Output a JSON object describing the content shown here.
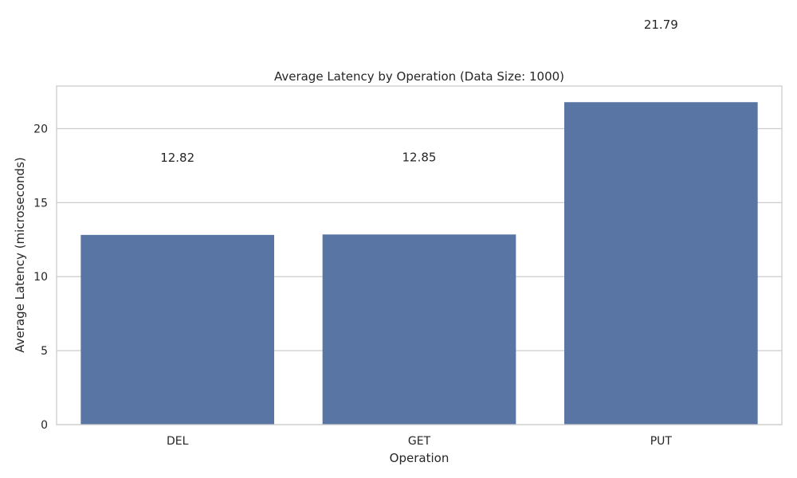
{
  "chart_data": {
    "type": "bar",
    "title": "Average Latency by Operation (Data Size: 1000)",
    "xlabel": "Operation",
    "ylabel": "Average Latency (microseconds)",
    "categories": [
      "DEL",
      "GET",
      "PUT"
    ],
    "values": [
      12.82,
      12.85,
      21.79
    ],
    "data_labels": [
      "12.82",
      "12.85",
      "21.79"
    ],
    "ylim": [
      0,
      22.88
    ],
    "yticks": [
      0,
      5,
      10,
      15,
      20
    ],
    "ytick_labels": [
      "0",
      "5",
      "10",
      "15",
      "20"
    ],
    "grid": true,
    "bar_color": "#5875a4",
    "grid_color": "#cccccc",
    "frame_color": "#cccccc"
  }
}
